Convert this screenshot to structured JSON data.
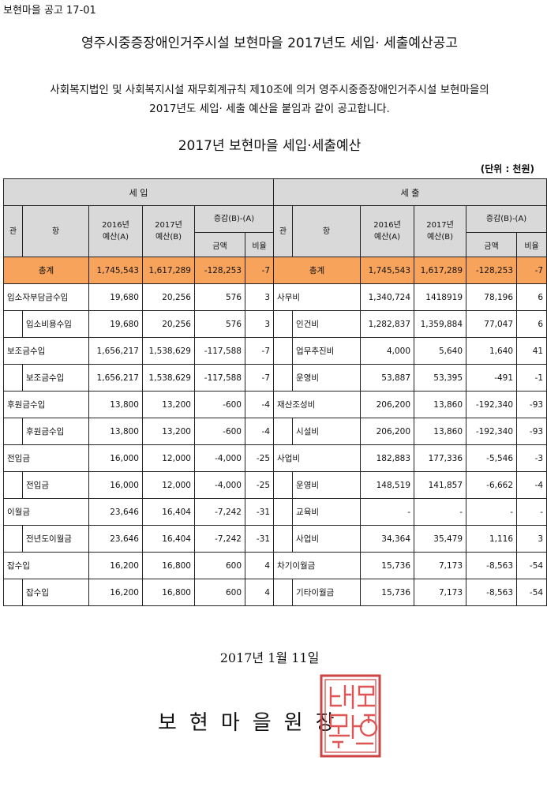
{
  "doc_id": "보현마을 공고 17-01",
  "title": "영주시중증장애인거주시설 보현마을 2017년도 세입· 세출예산공고",
  "intro_line1": "사회복지법인 및 사회복지시설 재무회계규칙 제10조에 의거 영주시중증장애인거주시설 보현마을의",
  "intro_line2": "2017년도 세입· 세출 예산을 붙임과 같이 공고합니다.",
  "sub_title": "2017년 보현마을 세입·세출예산",
  "unit": "(단위 : 천원)",
  "headers": {
    "revenue": "세 입",
    "expense": "세 출",
    "gwan": "관",
    "hang": "항",
    "y2016a": "2016년",
    "y2016b": "예산(A)",
    "y2017a": "2017년",
    "y2017b": "예산(B)",
    "diff": "증감(B)-(A)",
    "amount": "금액",
    "ratio": "비율"
  },
  "total": {
    "label_left": "총계",
    "l2016": "1,745,543",
    "l2017": "1,617,289",
    "ldiff": "-128,253",
    "lratio": "-7",
    "label_right": "총계",
    "r2016": "1,745,543",
    "r2017": "1,617,289",
    "rdiff": "-128,253",
    "rratio": "-7"
  },
  "rows": [
    {
      "lg": "입소자부담금수입",
      "lh": "",
      "l1": "19,680",
      "l2": "20,256",
      "l3": "576",
      "l4": "3",
      "rg": "사무비",
      "rh": "",
      "r1": "1,340,724",
      "r2": "1418919",
      "r3": "78,196",
      "r4": "6"
    },
    {
      "lg": "",
      "lh": "입소비용수입",
      "l1": "19,680",
      "l2": "20,256",
      "l3": "576",
      "l4": "3",
      "rg": "",
      "rh": "인건비",
      "r1": "1,282,837",
      "r2": "1,359,884",
      "r3": "77,047",
      "r4": "6"
    },
    {
      "lg": "보조금수입",
      "lh": "",
      "l1": "1,656,217",
      "l2": "1,538,629",
      "l3": "-117,588",
      "l4": "-7",
      "rg": "",
      "rh": "업무추진비",
      "r1": "4,000",
      "r2": "5,640",
      "r3": "1,640",
      "r4": "41"
    },
    {
      "lg": "",
      "lh": "보조금수입",
      "l1": "1,656,217",
      "l2": "1,538,629",
      "l3": "-117,588",
      "l4": "-7",
      "rg": "",
      "rh": "운영비",
      "r1": "53,887",
      "r2": "53,395",
      "r3": "-491",
      "r4": "-1"
    },
    {
      "lg": "후원금수입",
      "lh": "",
      "l1": "13,800",
      "l2": "13,200",
      "l3": "-600",
      "l4": "-4",
      "rg": "재산조성비",
      "rh": "",
      "r1": "206,200",
      "r2": "13,860",
      "r3": "-192,340",
      "r4": "-93"
    },
    {
      "lg": "",
      "lh": "후원금수입",
      "l1": "13,800",
      "l2": "13,200",
      "l3": "-600",
      "l4": "-4",
      "rg": "",
      "rh": "시설비",
      "r1": "206,200",
      "r2": "13,860",
      "r3": "-192,340",
      "r4": "-93"
    },
    {
      "lg": "전입금",
      "lh": "",
      "l1": "16,000",
      "l2": "12,000",
      "l3": "-4,000",
      "l4": "-25",
      "rg": "사업비",
      "rh": "",
      "r1": "182,883",
      "r2": "177,336",
      "r3": "-5,546",
      "r4": "-3"
    },
    {
      "lg": "",
      "lh": "전입금",
      "l1": "16,000",
      "l2": "12,000",
      "l3": "-4,000",
      "l4": "-25",
      "rg": "",
      "rh": "운영비",
      "r1": "148,519",
      "r2": "141,857",
      "r3": "-6,662",
      "r4": "-4"
    },
    {
      "lg": "이월금",
      "lh": "",
      "l1": "23,646",
      "l2": "16,404",
      "l3": "-7,242",
      "l4": "-31",
      "rg": "",
      "rh": "교육비",
      "r1": "-",
      "r2": "-",
      "r3": "-",
      "r4": "-"
    },
    {
      "lg": "",
      "lh": "전년도이월금",
      "l1": "23,646",
      "l2": "16,404",
      "l3": "-7,242",
      "l4": "-31",
      "rg": "",
      "rh": "사업비",
      "r1": "34,364",
      "r2": "35,479",
      "r3": "1,116",
      "r4": "3"
    },
    {
      "lg": "잡수입",
      "lh": "",
      "l1": "16,200",
      "l2": "16,800",
      "l3": "600",
      "l4": "4",
      "rg": "차기이월금",
      "rh": "",
      "r1": "15,736",
      "r2": "7,173",
      "r3": "-8,563",
      "r4": "-54"
    },
    {
      "lg": "",
      "lh": "잡수입",
      "l1": "16,200",
      "l2": "16,800",
      "l3": "600",
      "l4": "4",
      "rg": "",
      "rh": "기타이월금",
      "r1": "15,736",
      "r2": "7,173",
      "r3": "-8,563",
      "r4": "-54"
    }
  ],
  "date": "2017년 1월 11일",
  "signer": "보현마을원장"
}
